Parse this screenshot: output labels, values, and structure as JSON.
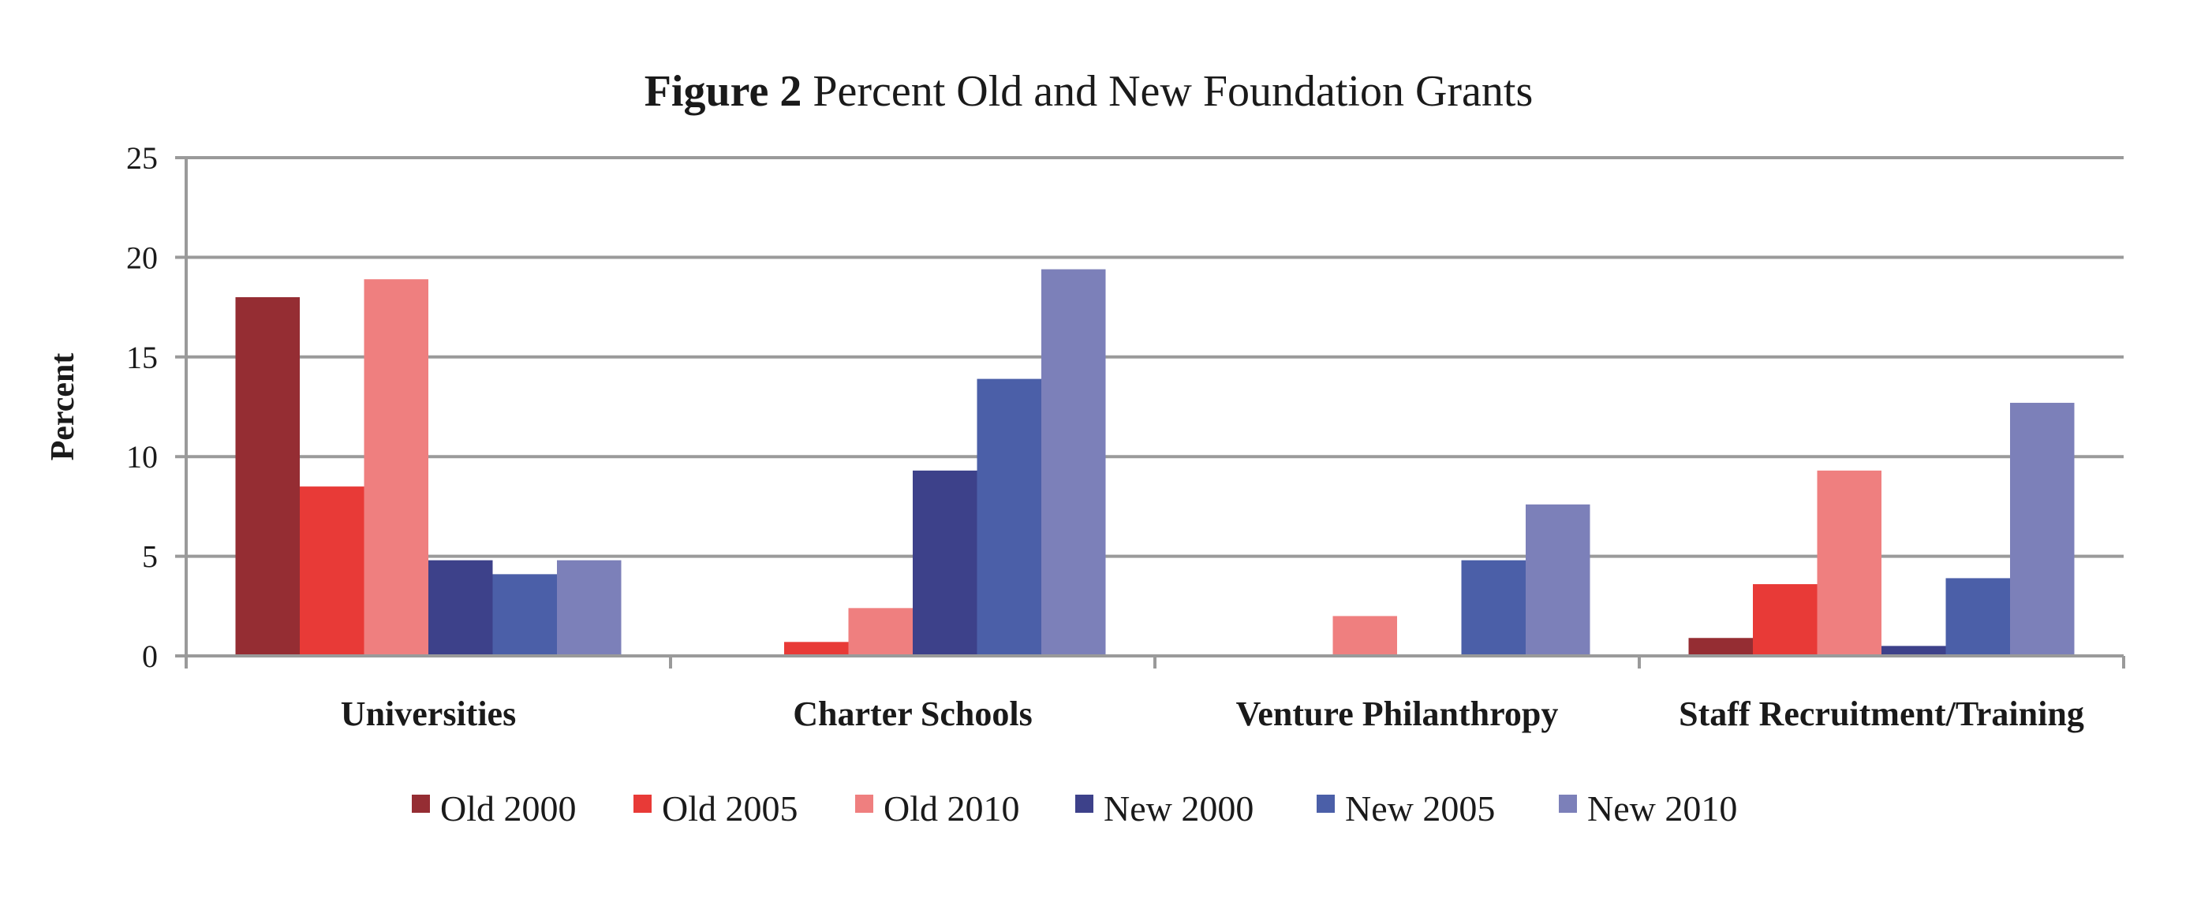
{
  "chart_data": {
    "type": "bar",
    "title_prefix": "Figure 2",
    "title": "Percent Old and New Foundation Grants",
    "xlabel": "",
    "ylabel": "Percent",
    "ylim": [
      0,
      25
    ],
    "yticks": [
      0,
      5,
      10,
      15,
      20,
      25
    ],
    "grid": true,
    "legend_position": "bottom",
    "categories": [
      "Universities",
      "Charter Schools",
      "Venture Philanthropy",
      "Staff Recruitment/Training"
    ],
    "series": [
      {
        "name": "Old 2000",
        "color": "#952d33",
        "values": [
          18.0,
          0,
          0,
          0.9
        ]
      },
      {
        "name": "Old 2005",
        "color": "#e83a37",
        "values": [
          8.5,
          0.7,
          0,
          3.6
        ]
      },
      {
        "name": "Old 2010",
        "color": "#ef7f7f",
        "values": [
          18.9,
          2.4,
          2.0,
          9.3
        ]
      },
      {
        "name": "New 2000",
        "color": "#3d418a",
        "values": [
          4.8,
          9.3,
          0,
          0.5
        ]
      },
      {
        "name": "New 2005",
        "color": "#4b5fa8",
        "values": [
          4.1,
          13.9,
          4.8,
          3.9
        ]
      },
      {
        "name": "New 2010",
        "color": "#7c80b9",
        "values": [
          4.8,
          19.4,
          7.6,
          12.7
        ]
      }
    ]
  }
}
